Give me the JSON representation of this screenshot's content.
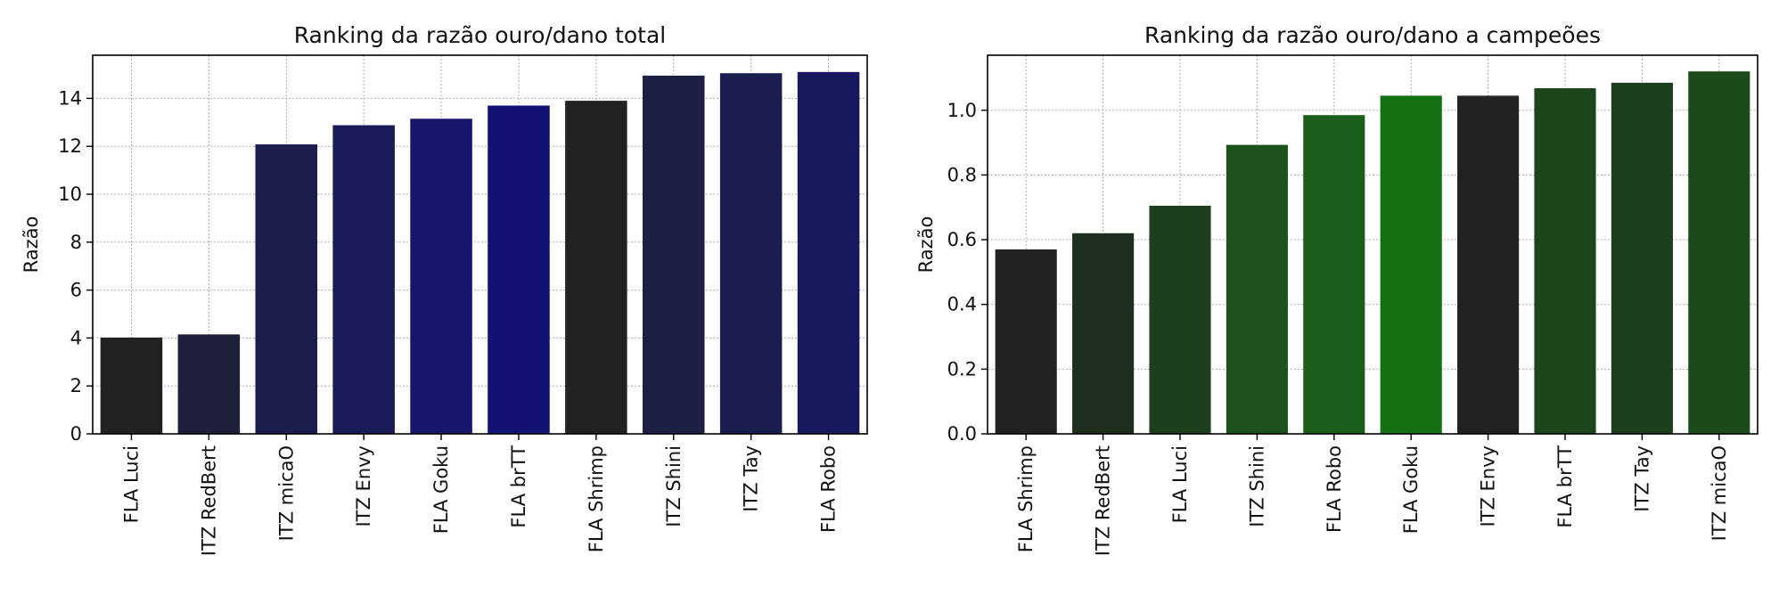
{
  "chart_data": [
    {
      "type": "bar",
      "title": "Ranking da razão ouro/dano total",
      "xlabel": "",
      "ylabel": "Razão",
      "ylim": [
        0,
        15.8
      ],
      "yticks": [
        0,
        2,
        4,
        6,
        8,
        10,
        12,
        14
      ],
      "ytick_labels": [
        "0",
        "2",
        "4",
        "6",
        "8",
        "10",
        "12",
        "14"
      ],
      "grid": true,
      "categories": [
        "FLA Luci",
        "ITZ RedBert",
        "ITZ micaO",
        "ITZ Envy",
        "FLA Goku",
        "FLA brTT",
        "FLA Shrimp",
        "ITZ Shini",
        "ITZ Tay",
        "FLA Robo"
      ],
      "values": [
        4.02,
        4.15,
        12.08,
        12.88,
        13.15,
        13.7,
        13.9,
        14.95,
        15.05,
        15.1
      ],
      "colors": [
        "#222222",
        "#1d1f3b",
        "#1c1d4d",
        "#1b1b5a",
        "#18166a",
        "#121275",
        "#222222",
        "#1d1f45",
        "#1b1c50",
        "#18185f"
      ]
    },
    {
      "type": "bar",
      "title": "Ranking da razão ouro/dano a campeões",
      "xlabel": "",
      "ylabel": "Razão",
      "ylim": [
        0,
        1.17
      ],
      "yticks": [
        0.0,
        0.2,
        0.4,
        0.6,
        0.8,
        1.0
      ],
      "ytick_labels": [
        "0.0",
        "0.2",
        "0.4",
        "0.6",
        "0.8",
        "1.0"
      ],
      "grid": true,
      "categories": [
        "FLA Shrimp",
        "ITZ RedBert",
        "FLA Luci",
        "ITZ Shini",
        "FLA Robo",
        "FLA Goku",
        "ITZ Envy",
        "FLA brTT",
        "ITZ Tay",
        "ITZ micaO"
      ],
      "values": [
        0.57,
        0.62,
        0.705,
        0.893,
        0.985,
        1.045,
        1.045,
        1.068,
        1.085,
        1.12
      ],
      "colors": [
        "#222222",
        "#1f2f1f",
        "#1d3f1d",
        "#1c521c",
        "#1a5e1a",
        "#137013",
        "#222222",
        "#1b461b",
        "#1d3f1d",
        "#1b4a1b"
      ]
    }
  ]
}
